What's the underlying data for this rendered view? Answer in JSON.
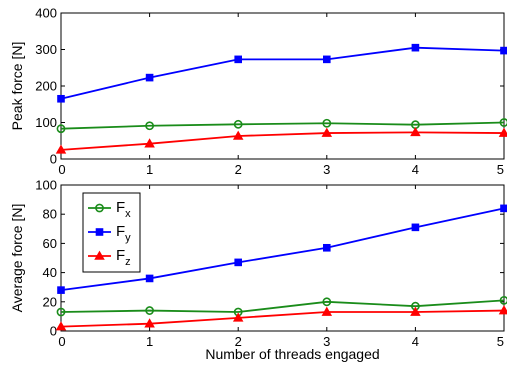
{
  "chart_data": [
    {
      "type": "line",
      "title": "",
      "xlabel": "",
      "ylabel": "Peak force [N]",
      "x": [
        0,
        1,
        2,
        3,
        4,
        5
      ],
      "x_ticks": [
        "0",
        "1",
        "2",
        "3",
        "4",
        "5"
      ],
      "xlim": [
        0,
        5
      ],
      "ylim": [
        0,
        400
      ],
      "y_ticks": [
        "0",
        "100",
        "200",
        "300",
        "400"
      ],
      "grid": false,
      "series": [
        {
          "name": "Fx",
          "color": "#1a8c1a",
          "marker": "circle",
          "values": [
            83,
            91,
            95,
            98,
            94,
            100
          ]
        },
        {
          "name": "Fy",
          "color": "#0000ff",
          "marker": "square",
          "values": [
            165,
            223,
            273,
            273,
            305,
            297
          ]
        },
        {
          "name": "Fz",
          "color": "#ff0000",
          "marker": "triangle",
          "values": [
            25,
            42,
            63,
            71,
            73,
            71
          ]
        }
      ]
    },
    {
      "type": "line",
      "title": "",
      "xlabel": "Number of threads engaged",
      "ylabel": "Average force [N]",
      "x": [
        0,
        1,
        2,
        3,
        4,
        5
      ],
      "x_ticks": [
        "0",
        "1",
        "2",
        "3",
        "4",
        "5"
      ],
      "xlim": [
        0,
        5
      ],
      "ylim": [
        0,
        100
      ],
      "y_ticks": [
        "0",
        "20",
        "40",
        "60",
        "80",
        "100"
      ],
      "grid": false,
      "legend_position": "top-left",
      "series": [
        {
          "name": "Fx",
          "color": "#1a8c1a",
          "marker": "circle",
          "values": [
            13,
            14,
            13,
            20,
            17,
            21
          ]
        },
        {
          "name": "Fy",
          "color": "#0000ff",
          "marker": "square",
          "values": [
            28,
            36,
            47,
            57,
            71,
            84
          ]
        },
        {
          "name": "Fz",
          "color": "#ff0000",
          "marker": "triangle",
          "values": [
            3,
            5,
            9,
            13,
            13,
            14
          ]
        }
      ]
    }
  ],
  "legend": [
    {
      "base": "F",
      "sub": "x",
      "color": "#1a8c1a",
      "marker": "circle"
    },
    {
      "base": "F",
      "sub": "y",
      "color": "#0000ff",
      "marker": "square"
    },
    {
      "base": "F",
      "sub": "z",
      "color": "#ff0000",
      "marker": "triangle"
    }
  ]
}
